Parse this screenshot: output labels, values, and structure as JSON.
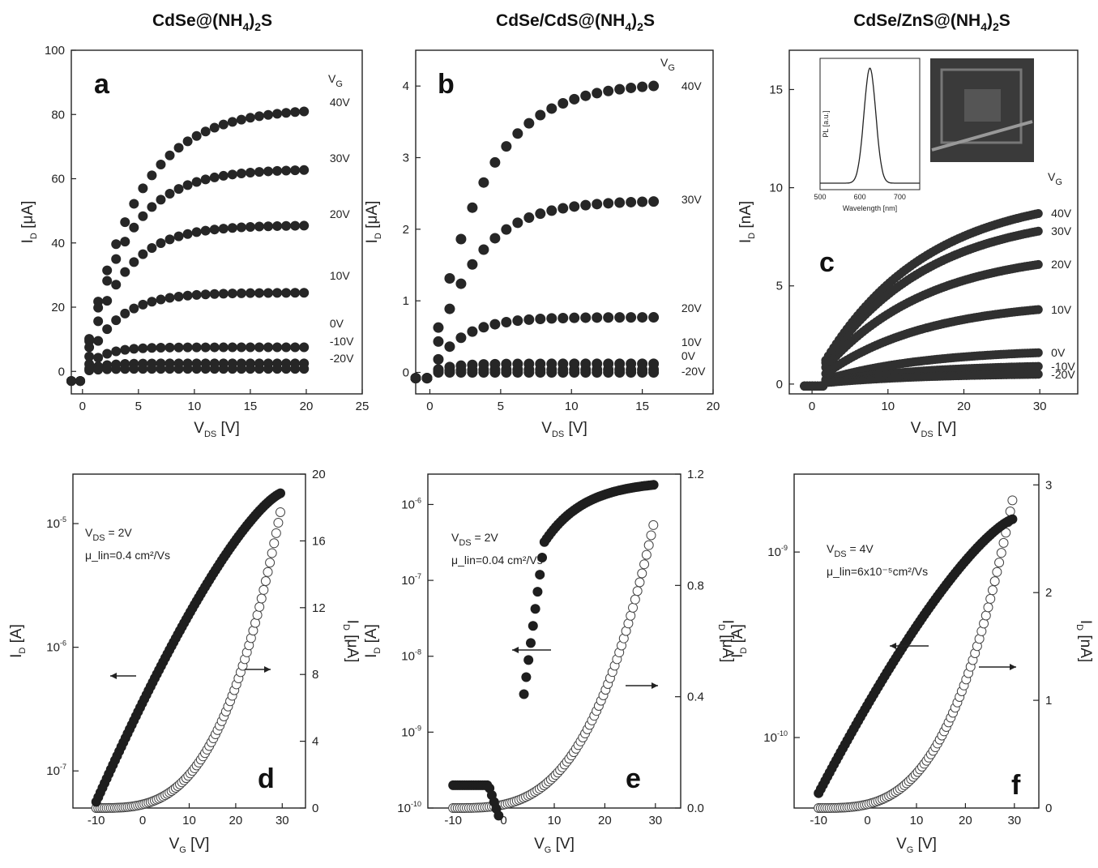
{
  "titles": [
    "CdSe@(NH4)2S",
    "CdSe/CdS@(NH4)2S",
    "CdSe/ZnS@(NH4)2S"
  ],
  "chart_data": [
    {
      "panel": "a",
      "type": "scatter",
      "title": "CdSe@(NH4)2S",
      "xlabel": "V_DS [V]",
      "ylabel": "I_D [μA]",
      "xlim": [
        -1,
        25
      ],
      "ylim": [
        -7,
        100
      ],
      "xticks": [
        0,
        5,
        10,
        15,
        20,
        25
      ],
      "yticks": [
        0,
        20,
        40,
        60,
        80,
        100
      ],
      "legend_title": "V_G",
      "series": [
        {
          "name": "40V",
          "sat": 82,
          "k": 0.22
        },
        {
          "name": "30V",
          "sat": 63,
          "k": 0.27
        },
        {
          "name": "20V",
          "sat": 45.5,
          "k": 0.3
        },
        {
          "name": "10V",
          "sat": 24.5,
          "k": 0.35
        },
        {
          "name": "0V",
          "sat": 7.5,
          "k": 0.6
        },
        {
          "name": "-10V",
          "sat": 2.5,
          "k": 0.7
        },
        {
          "name": "-20V",
          "sat": 0.8,
          "k": 0.8
        }
      ],
      "vds_max": 20.5
    },
    {
      "panel": "b",
      "type": "scatter",
      "title": "CdSe/CdS@(NH4)2S",
      "xlabel": "V_DS [V]",
      "ylabel": "I_D [μA]",
      "xlim": [
        -1,
        20
      ],
      "ylim": [
        -0.3,
        4.5
      ],
      "xticks": [
        0,
        5,
        10,
        15,
        20
      ],
      "yticks": [
        0,
        1,
        2,
        3,
        4
      ],
      "legend_title": "V_G",
      "series": [
        {
          "name": "40V",
          "sat": 4.05,
          "k": 0.28
        },
        {
          "name": "30V",
          "sat": 2.4,
          "k": 0.33
        },
        {
          "name": "20V",
          "sat": 0.77,
          "k": 0.45
        },
        {
          "name": "10V",
          "sat": 0.12,
          "k": 0.7
        },
        {
          "name": "0V",
          "sat": 0.04,
          "k": 0.8
        },
        {
          "name": "-20V",
          "sat": 0.0,
          "k": 0.8
        }
      ],
      "vds_max": 16.5
    },
    {
      "panel": "c",
      "type": "scatter",
      "title": "CdSe/ZnS@(NH4)2S",
      "xlabel": "V_DS [V]",
      "ylabel": "I_D [nA]",
      "xlim": [
        -3,
        35
      ],
      "ylim": [
        -0.5,
        17
      ],
      "xticks": [
        0,
        10,
        20,
        30
      ],
      "yticks": [
        0,
        5,
        10,
        15
      ],
      "legend_title": "V_G",
      "series": [
        {
          "name": "40V",
          "end": 8.7
        },
        {
          "name": "30V",
          "end": 7.8
        },
        {
          "name": "20V",
          "end": 6.1
        },
        {
          "name": "10V",
          "end": 3.8
        },
        {
          "name": "0V",
          "end": 1.6
        },
        {
          "name": "-10V",
          "end": 0.9
        },
        {
          "name": "-20V",
          "end": 0.5
        }
      ],
      "vds_max": 30,
      "inset": {
        "xlabel": "Wavelength [nm]",
        "ylabel": "PL [a.u.]",
        "xlim": [
          500,
          750
        ],
        "xticks": [
          500,
          600,
          700
        ],
        "peak_nm": 625,
        "fwhm_nm": 35
      }
    },
    {
      "panel": "d",
      "type": "scatter",
      "title": "",
      "xlabel": "V_G [V]",
      "ylabel_left": "I_D [A]",
      "ylabel_right": "I_D [μA]",
      "xlim": [
        -15,
        35
      ],
      "xticks": [
        -10,
        0,
        10,
        20,
        30
      ],
      "log_left": {
        "min_exp": -7.3,
        "max_exp": -4.6,
        "tick_exps": [
          -7,
          -6,
          -5
        ]
      },
      "right_lim": [
        0,
        20
      ],
      "right_ticks": [
        0,
        4,
        8,
        12,
        16,
        20
      ],
      "annotation": [
        "V_DS = 2V",
        "μ_lin=0.4 cm²/Vs"
      ],
      "log_series": {
        "x_start": -10,
        "x_end": 30,
        "start_exp": -7.25,
        "end_exp": -4.75
      },
      "lin_series": {
        "x_start": -10,
        "x_end": 30,
        "max": 18.3
      }
    },
    {
      "panel": "e",
      "type": "scatter",
      "title": "",
      "xlabel": "V_G [V]",
      "ylabel_left": "I_D [A]",
      "ylabel_right": "I_D [μA]",
      "xlim": [
        -15,
        35
      ],
      "xticks": [
        -10,
        0,
        10,
        20,
        30
      ],
      "log_left": {
        "min_exp": -10,
        "max_exp": -5.6,
        "tick_exps": [
          -10,
          -9,
          -8,
          -7,
          -6
        ]
      },
      "right_lim": [
        0,
        1.2
      ],
      "right_ticks": [
        "0.0",
        "0.4",
        "0.8",
        "1.2"
      ],
      "annotation": [
        "V_DS = 2V",
        "μ_lin=0.04 cm²/Vs"
      ],
      "lin_series": {
        "x_start": -10,
        "x_end": 30,
        "max": 1.05
      }
    },
    {
      "panel": "f",
      "type": "scatter",
      "title": "",
      "xlabel": "V_G [V]",
      "ylabel_left": "I_D [A]",
      "ylabel_right": "I_D [nA]",
      "xlim": [
        -15,
        35
      ],
      "xticks": [
        -10,
        0,
        10,
        20,
        30
      ],
      "log_left": {
        "min_exp": -10.38,
        "max_exp": -8.58,
        "tick_exps": [
          -10,
          -9
        ]
      },
      "right_lim": [
        0,
        3.1
      ],
      "right_ticks": [
        0,
        1,
        2,
        3
      ],
      "annotation": [
        "V_DS = 4V",
        "μ_lin=6x10⁻⁵cm²/Vs"
      ],
      "log_series": {
        "x_start": -10,
        "x_end": 30,
        "start_exp": -10.3,
        "end_exp": -8.82
      },
      "lin_series": {
        "x_start": -10,
        "x_end": 30,
        "max": 2.95
      }
    }
  ]
}
